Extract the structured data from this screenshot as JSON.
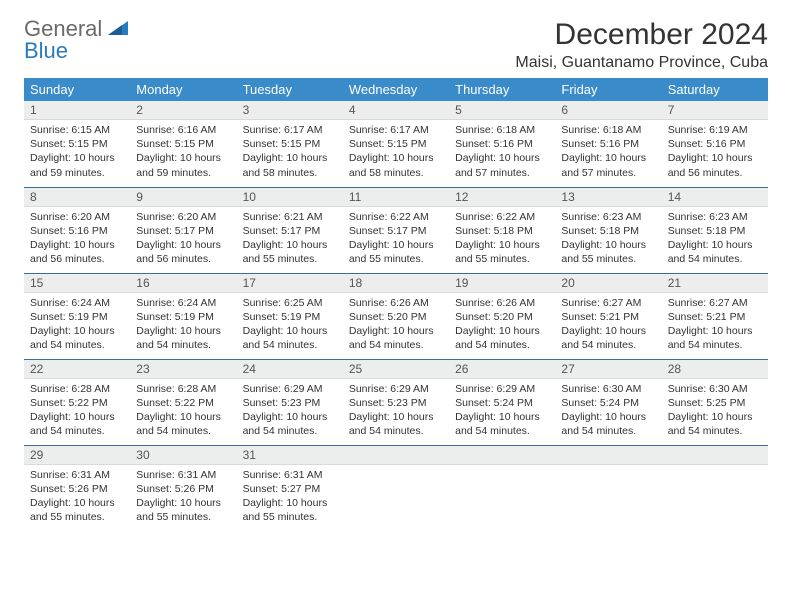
{
  "logo": {
    "word1": "General",
    "word2": "Blue"
  },
  "title": "December 2024",
  "location": "Maisi, Guantanamo Province, Cuba",
  "header_bg": "#3a8bc9",
  "header_fg": "#ffffff",
  "daynum_bg": "#eceded",
  "row_border": "#3a6d9a",
  "dayNames": [
    "Sunday",
    "Monday",
    "Tuesday",
    "Wednesday",
    "Thursday",
    "Friday",
    "Saturday"
  ],
  "weeks": [
    [
      {
        "n": "1",
        "sr": "Sunrise: 6:15 AM",
        "ss": "Sunset: 5:15 PM",
        "dl": "Daylight: 10 hours and 59 minutes."
      },
      {
        "n": "2",
        "sr": "Sunrise: 6:16 AM",
        "ss": "Sunset: 5:15 PM",
        "dl": "Daylight: 10 hours and 59 minutes."
      },
      {
        "n": "3",
        "sr": "Sunrise: 6:17 AM",
        "ss": "Sunset: 5:15 PM",
        "dl": "Daylight: 10 hours and 58 minutes."
      },
      {
        "n": "4",
        "sr": "Sunrise: 6:17 AM",
        "ss": "Sunset: 5:15 PM",
        "dl": "Daylight: 10 hours and 58 minutes."
      },
      {
        "n": "5",
        "sr": "Sunrise: 6:18 AM",
        "ss": "Sunset: 5:16 PM",
        "dl": "Daylight: 10 hours and 57 minutes."
      },
      {
        "n": "6",
        "sr": "Sunrise: 6:18 AM",
        "ss": "Sunset: 5:16 PM",
        "dl": "Daylight: 10 hours and 57 minutes."
      },
      {
        "n": "7",
        "sr": "Sunrise: 6:19 AM",
        "ss": "Sunset: 5:16 PM",
        "dl": "Daylight: 10 hours and 56 minutes."
      }
    ],
    [
      {
        "n": "8",
        "sr": "Sunrise: 6:20 AM",
        "ss": "Sunset: 5:16 PM",
        "dl": "Daylight: 10 hours and 56 minutes."
      },
      {
        "n": "9",
        "sr": "Sunrise: 6:20 AM",
        "ss": "Sunset: 5:17 PM",
        "dl": "Daylight: 10 hours and 56 minutes."
      },
      {
        "n": "10",
        "sr": "Sunrise: 6:21 AM",
        "ss": "Sunset: 5:17 PM",
        "dl": "Daylight: 10 hours and 55 minutes."
      },
      {
        "n": "11",
        "sr": "Sunrise: 6:22 AM",
        "ss": "Sunset: 5:17 PM",
        "dl": "Daylight: 10 hours and 55 minutes."
      },
      {
        "n": "12",
        "sr": "Sunrise: 6:22 AM",
        "ss": "Sunset: 5:18 PM",
        "dl": "Daylight: 10 hours and 55 minutes."
      },
      {
        "n": "13",
        "sr": "Sunrise: 6:23 AM",
        "ss": "Sunset: 5:18 PM",
        "dl": "Daylight: 10 hours and 55 minutes."
      },
      {
        "n": "14",
        "sr": "Sunrise: 6:23 AM",
        "ss": "Sunset: 5:18 PM",
        "dl": "Daylight: 10 hours and 54 minutes."
      }
    ],
    [
      {
        "n": "15",
        "sr": "Sunrise: 6:24 AM",
        "ss": "Sunset: 5:19 PM",
        "dl": "Daylight: 10 hours and 54 minutes."
      },
      {
        "n": "16",
        "sr": "Sunrise: 6:24 AM",
        "ss": "Sunset: 5:19 PM",
        "dl": "Daylight: 10 hours and 54 minutes."
      },
      {
        "n": "17",
        "sr": "Sunrise: 6:25 AM",
        "ss": "Sunset: 5:19 PM",
        "dl": "Daylight: 10 hours and 54 minutes."
      },
      {
        "n": "18",
        "sr": "Sunrise: 6:26 AM",
        "ss": "Sunset: 5:20 PM",
        "dl": "Daylight: 10 hours and 54 minutes."
      },
      {
        "n": "19",
        "sr": "Sunrise: 6:26 AM",
        "ss": "Sunset: 5:20 PM",
        "dl": "Daylight: 10 hours and 54 minutes."
      },
      {
        "n": "20",
        "sr": "Sunrise: 6:27 AM",
        "ss": "Sunset: 5:21 PM",
        "dl": "Daylight: 10 hours and 54 minutes."
      },
      {
        "n": "21",
        "sr": "Sunrise: 6:27 AM",
        "ss": "Sunset: 5:21 PM",
        "dl": "Daylight: 10 hours and 54 minutes."
      }
    ],
    [
      {
        "n": "22",
        "sr": "Sunrise: 6:28 AM",
        "ss": "Sunset: 5:22 PM",
        "dl": "Daylight: 10 hours and 54 minutes."
      },
      {
        "n": "23",
        "sr": "Sunrise: 6:28 AM",
        "ss": "Sunset: 5:22 PM",
        "dl": "Daylight: 10 hours and 54 minutes."
      },
      {
        "n": "24",
        "sr": "Sunrise: 6:29 AM",
        "ss": "Sunset: 5:23 PM",
        "dl": "Daylight: 10 hours and 54 minutes."
      },
      {
        "n": "25",
        "sr": "Sunrise: 6:29 AM",
        "ss": "Sunset: 5:23 PM",
        "dl": "Daylight: 10 hours and 54 minutes."
      },
      {
        "n": "26",
        "sr": "Sunrise: 6:29 AM",
        "ss": "Sunset: 5:24 PM",
        "dl": "Daylight: 10 hours and 54 minutes."
      },
      {
        "n": "27",
        "sr": "Sunrise: 6:30 AM",
        "ss": "Sunset: 5:24 PM",
        "dl": "Daylight: 10 hours and 54 minutes."
      },
      {
        "n": "28",
        "sr": "Sunrise: 6:30 AM",
        "ss": "Sunset: 5:25 PM",
        "dl": "Daylight: 10 hours and 54 minutes."
      }
    ],
    [
      {
        "n": "29",
        "sr": "Sunrise: 6:31 AM",
        "ss": "Sunset: 5:26 PM",
        "dl": "Daylight: 10 hours and 55 minutes."
      },
      {
        "n": "30",
        "sr": "Sunrise: 6:31 AM",
        "ss": "Sunset: 5:26 PM",
        "dl": "Daylight: 10 hours and 55 minutes."
      },
      {
        "n": "31",
        "sr": "Sunrise: 6:31 AM",
        "ss": "Sunset: 5:27 PM",
        "dl": "Daylight: 10 hours and 55 minutes."
      },
      {
        "empty": true
      },
      {
        "empty": true
      },
      {
        "empty": true
      },
      {
        "empty": true
      }
    ]
  ]
}
